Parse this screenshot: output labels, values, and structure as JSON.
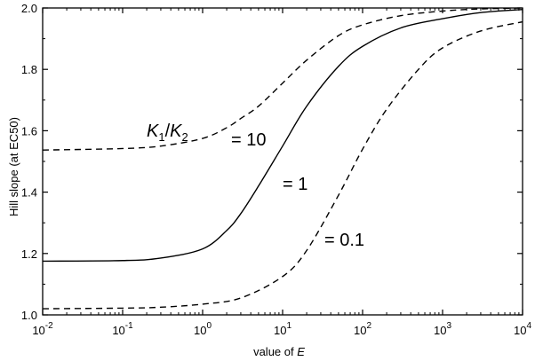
{
  "chart_data": {
    "type": "line",
    "xlabel": {
      "prefix": "value of ",
      "italic": "E"
    },
    "ylabel": "Hill slope (at EC50)",
    "xscale": "log",
    "xlim": [
      0.01,
      10000
    ],
    "ylim": [
      1.0,
      2.0
    ],
    "x_ticks": [
      {
        "base": "10",
        "exp": "-2"
      },
      {
        "base": "10",
        "exp": "-1"
      },
      {
        "base": "10",
        "exp": "0"
      },
      {
        "base": "10",
        "exp": "1"
      },
      {
        "base": "10",
        "exp": "2"
      },
      {
        "base": "10",
        "exp": "3"
      },
      {
        "base": "10",
        "exp": "4"
      }
    ],
    "y_ticks": [
      "1.0",
      "1.2",
      "1.4",
      "1.6",
      "1.8",
      "2.0"
    ],
    "grid": false,
    "series": [
      {
        "annotation": "= 10",
        "line_style": "dashed",
        "x": [
          0.01,
          0.1,
          0.3,
          1,
          2,
          3,
          5,
          10,
          20,
          50,
          100,
          300,
          1000,
          3000,
          10000
        ],
        "y": [
          1.537,
          1.542,
          1.55,
          1.575,
          1.61,
          1.64,
          1.68,
          1.755,
          1.83,
          1.91,
          1.945,
          1.975,
          1.99,
          1.997,
          2.0
        ]
      },
      {
        "annotation": "= 1",
        "line_style": "solid",
        "x": [
          0.01,
          0.1,
          0.3,
          1,
          2,
          3,
          5,
          10,
          20,
          50,
          100,
          300,
          1000,
          3000,
          10000
        ],
        "y": [
          1.175,
          1.177,
          1.185,
          1.215,
          1.275,
          1.33,
          1.42,
          1.55,
          1.68,
          1.81,
          1.875,
          1.935,
          1.965,
          1.985,
          1.995
        ]
      },
      {
        "annotation": "= 0.1",
        "line_style": "dashed",
        "x": [
          0.01,
          0.1,
          0.3,
          1,
          3,
          10,
          20,
          50,
          100,
          200,
          500,
          1000,
          3000,
          10000
        ],
        "y": [
          1.02,
          1.022,
          1.025,
          1.035,
          1.055,
          1.125,
          1.21,
          1.39,
          1.54,
          1.67,
          1.8,
          1.87,
          1.925,
          1.955
        ]
      }
    ],
    "annotation_label": {
      "k1": "K",
      "sub1": "1",
      "slash": "/",
      "k2": "K",
      "sub2": "2"
    }
  }
}
